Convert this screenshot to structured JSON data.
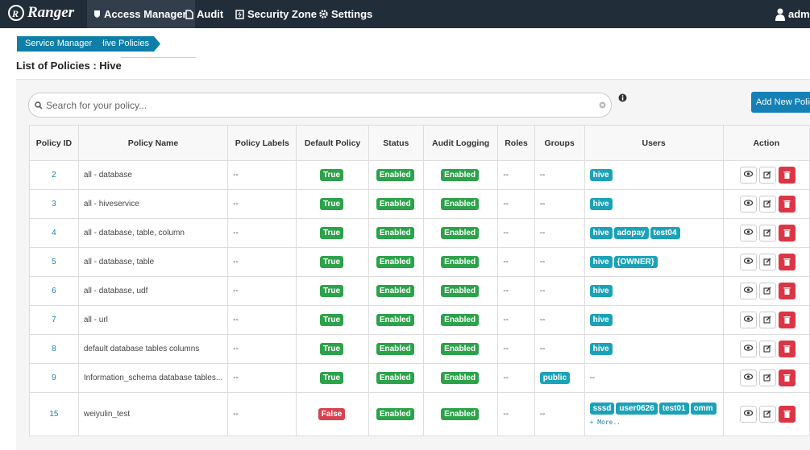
{
  "nav": {
    "brand": "Ranger",
    "items": [
      "Access Manager",
      "Audit",
      "Security Zone",
      "Settings"
    ],
    "user": "admin"
  },
  "breadcrumb": [
    "Service Manager",
    "Hive Policies"
  ],
  "page_title": "List of Policies : Hive",
  "search_placeholder": "Search for your policy...",
  "add_button": "Add New Policy",
  "table": {
    "headers": [
      "Policy ID",
      "Policy Name",
      "Policy Labels",
      "Default Policy",
      "Status",
      "Audit Logging",
      "Roles",
      "Groups",
      "Users",
      "Action"
    ],
    "rows": [
      {
        "id": "2",
        "name": "all - database",
        "labels": "--",
        "default": "True",
        "status": "Enabled",
        "audit": "Enabled",
        "roles": "--",
        "groups": "--",
        "users": [
          "hive"
        ]
      },
      {
        "id": "3",
        "name": "all - hiveservice",
        "labels": "--",
        "default": "True",
        "status": "Enabled",
        "audit": "Enabled",
        "roles": "--",
        "groups": "--",
        "users": [
          "hive"
        ]
      },
      {
        "id": "4",
        "name": "all - database, table, column",
        "labels": "--",
        "default": "True",
        "status": "Enabled",
        "audit": "Enabled",
        "roles": "--",
        "groups": "--",
        "users": [
          "hive",
          "adopay",
          "test04"
        ]
      },
      {
        "id": "5",
        "name": "all - database, table",
        "labels": "--",
        "default": "True",
        "status": "Enabled",
        "audit": "Enabled",
        "roles": "--",
        "groups": "--",
        "users": [
          "hive",
          "{OWNER}"
        ]
      },
      {
        "id": "6",
        "name": "all - database, udf",
        "labels": "--",
        "default": "True",
        "status": "Enabled",
        "audit": "Enabled",
        "roles": "--",
        "groups": "--",
        "users": [
          "hive"
        ]
      },
      {
        "id": "7",
        "name": "all - url",
        "labels": "--",
        "default": "True",
        "status": "Enabled",
        "audit": "Enabled",
        "roles": "--",
        "groups": "--",
        "users": [
          "hive"
        ]
      },
      {
        "id": "8",
        "name": "default database tables columns",
        "labels": "--",
        "default": "True",
        "status": "Enabled",
        "audit": "Enabled",
        "roles": "--",
        "groups": "--",
        "users": [
          "hive"
        ]
      },
      {
        "id": "9",
        "name": "Information_schema database tables...",
        "labels": "--",
        "default": "True",
        "status": "Enabled",
        "audit": "Enabled",
        "roles": "--",
        "groups": [
          "public"
        ],
        "users": "--"
      },
      {
        "id": "15",
        "name": "weiyulin_test",
        "labels": "--",
        "default": "False",
        "status": "Enabled",
        "audit": "Enabled",
        "roles": "--",
        "groups": "--",
        "users": [
          "sssd",
          "user0626",
          "test01",
          "omm"
        ],
        "more": "+ More.."
      }
    ]
  }
}
